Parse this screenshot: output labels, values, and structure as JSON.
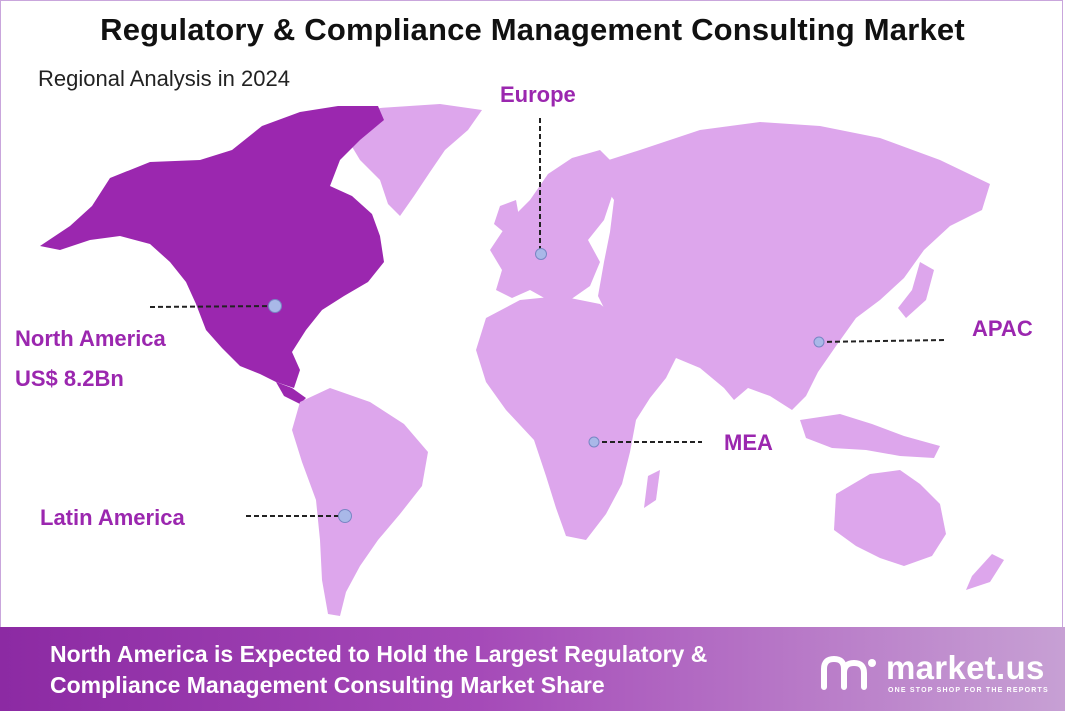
{
  "title": "Regulatory & Compliance Management Consulting Market",
  "subtitle": "Regional Analysis in 2024",
  "regions": {
    "north_america": {
      "name": "North America",
      "value": "US$ 8.2Bn"
    },
    "europe": {
      "name": "Europe"
    },
    "apac": {
      "name": "APAC"
    },
    "mea": {
      "name": "MEA"
    },
    "latin_america": {
      "name": "Latin America"
    }
  },
  "footer": {
    "text": "North America is Expected to Hold the Largest Regulatory & Compliance Management Consulting Market Share",
    "brand_name": "market.us",
    "brand_tagline": "ONE STOP SHOP FOR THE REPORTS"
  },
  "colors": {
    "highlight_region": "#9b27af",
    "other_regions": "#dda6ec",
    "label": "#9b27af",
    "marker": "#a9b8e8"
  },
  "icons": {
    "brand_logo": "market-us-logo-icon"
  }
}
